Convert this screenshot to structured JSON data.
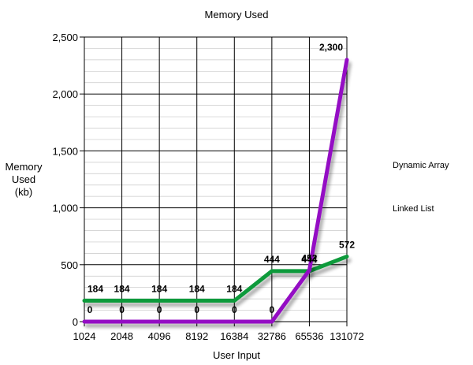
{
  "chart_data": {
    "type": "line",
    "title": "Memory Used",
    "xlabel": "User Input",
    "ylabel_lines": [
      "Memory",
      "Used",
      "(kb)"
    ],
    "categories": [
      "1024",
      "2048",
      "4096",
      "8192",
      "16384",
      "32786",
      "65536",
      "131072"
    ],
    "ylim": [
      0,
      2500
    ],
    "y_ticks": [
      0,
      500,
      1000,
      1500,
      2000,
      2500
    ],
    "y_tick_labels": [
      "0",
      "500",
      "1,000",
      "1,500",
      "2,000",
      "2,500"
    ],
    "grid": true,
    "legend_position": "right",
    "series": [
      {
        "name": "Dynamic Array",
        "color": "#0c9a3a",
        "values": [
          184,
          184,
          184,
          184,
          184,
          444,
          444,
          572
        ],
        "labels": [
          "184",
          "184",
          "184",
          "184",
          "184",
          "444",
          "444",
          "572"
        ]
      },
      {
        "name": "Linked List",
        "color": "#9410c4",
        "values": [
          0,
          0,
          0,
          0,
          0,
          0,
          452,
          2300
        ],
        "labels": [
          "0",
          "0",
          "0",
          "0",
          "0",
          "0",
          "452",
          "2,300"
        ]
      }
    ]
  }
}
